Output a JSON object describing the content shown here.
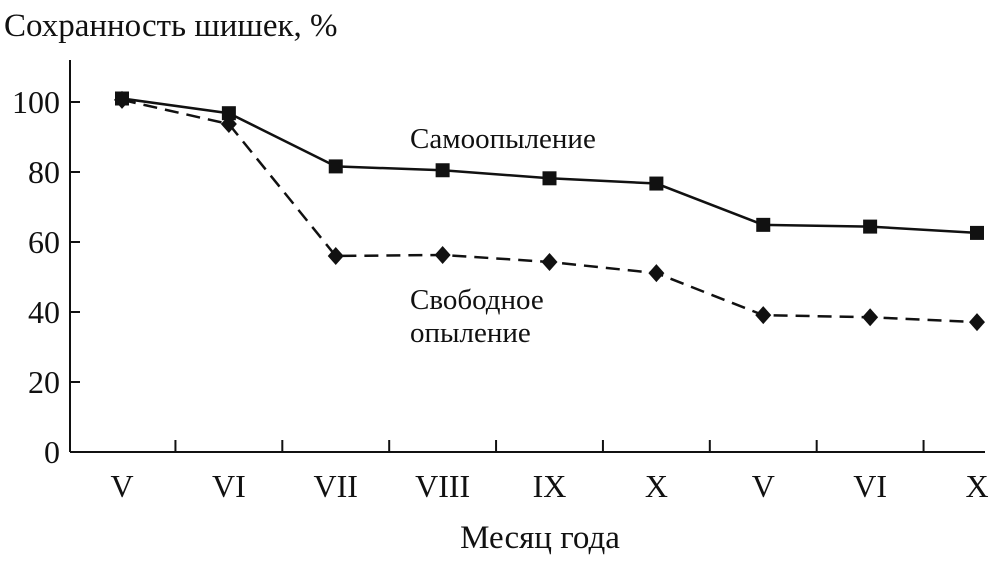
{
  "chart_data": {
    "type": "line",
    "title": "Сохранность шишек, %",
    "x_label": "Месяц года",
    "categories": [
      "V",
      "VI",
      "VII",
      "VIII",
      "IX",
      "X",
      "V",
      "VI",
      "X"
    ],
    "series": [
      {
        "name": "Самоопыление",
        "color": "#111111",
        "marker": "square",
        "dashed": false,
        "values": [
          101,
          96.8,
          81.6,
          80.5,
          78.2,
          76.7,
          64.9,
          64.4,
          62.6
        ]
      },
      {
        "name": "Свободное опыление",
        "color": "#111111",
        "marker": "diamond",
        "dashed": true,
        "values": [
          100.6,
          93.7,
          56,
          56.3,
          54.3,
          51.1,
          39.1,
          38.5,
          37.1
        ]
      }
    ],
    "ylim": [
      0,
      112
    ],
    "yticks": [
      0,
      20,
      40,
      60,
      80,
      100
    ],
    "grid": false
  }
}
